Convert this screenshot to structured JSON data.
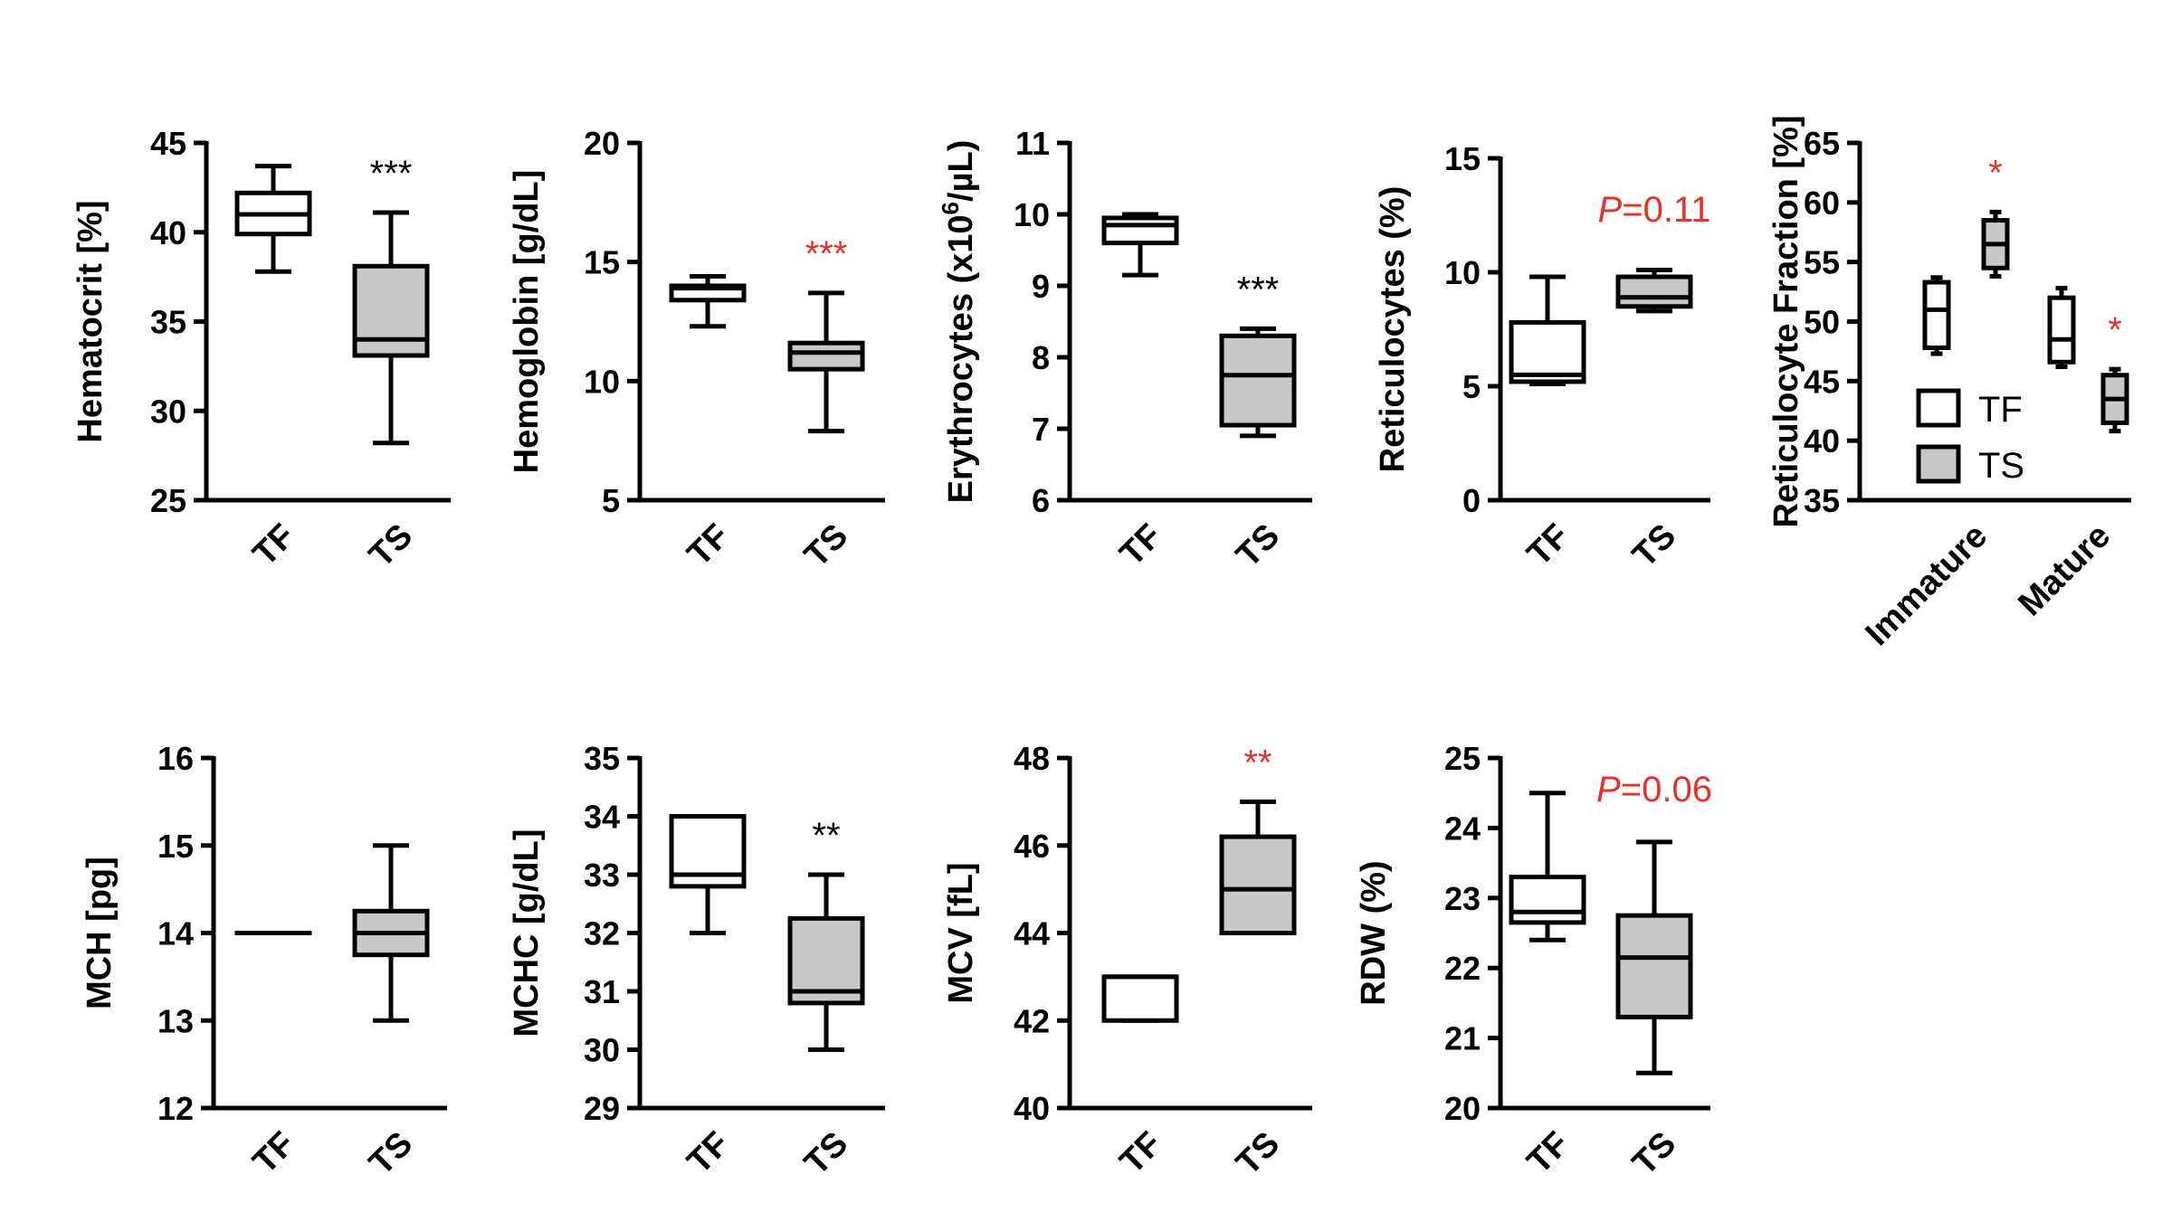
{
  "colors": {
    "tf_fill": "#ffffff",
    "ts_fill": "#c8c8c8",
    "line": "#000000",
    "significance_red": "#e8312a",
    "significance_black": "#000000"
  },
  "chart_data": [
    {
      "type": "box",
      "ylabel": "Hematocrit [%]",
      "ylim": [
        25,
        45
      ],
      "yticks": [
        25,
        30,
        35,
        40,
        45
      ],
      "categories": [
        "TF",
        "TS"
      ],
      "boxes": [
        {
          "group": "TF",
          "min": 37.8,
          "q1": 39.9,
          "median": 41.0,
          "q3": 42.2,
          "max": 43.7
        },
        {
          "group": "TS",
          "min": 28.2,
          "q1": 33.1,
          "median": 34.0,
          "q3": 38.1,
          "max": 41.1
        }
      ],
      "annotations": [
        {
          "text": "***",
          "group": "TS",
          "color": "black"
        }
      ]
    },
    {
      "type": "box",
      "ylabel": "Hemoglobin [g/dL]",
      "ylim": [
        5,
        20
      ],
      "yticks": [
        5,
        10,
        15,
        20
      ],
      "categories": [
        "TF",
        "TS"
      ],
      "boxes": [
        {
          "group": "TF",
          "min": 12.3,
          "q1": 13.4,
          "median": 13.9,
          "q3": 14.0,
          "max": 14.4
        },
        {
          "group": "TS",
          "min": 7.9,
          "q1": 10.5,
          "median": 11.2,
          "q3": 11.6,
          "max": 13.7
        }
      ],
      "annotations": [
        {
          "text": "***",
          "group": "TS",
          "color": "red"
        }
      ]
    },
    {
      "type": "box",
      "ylabel": "Erythrocytes (x10⁶/µL)",
      "ylim": [
        6,
        11
      ],
      "yticks": [
        6,
        7,
        8,
        9,
        10,
        11
      ],
      "categories": [
        "TF",
        "TS"
      ],
      "boxes": [
        {
          "group": "TF",
          "min": 9.15,
          "q1": 9.6,
          "median": 9.85,
          "q3": 9.95,
          "max": 10.0
        },
        {
          "group": "TS",
          "min": 6.9,
          "q1": 7.05,
          "median": 7.75,
          "q3": 8.3,
          "max": 8.4
        }
      ],
      "annotations": [
        {
          "text": "***",
          "group": "TS",
          "color": "black"
        }
      ]
    },
    {
      "type": "box",
      "ylabel": "Reticulocytes (%)",
      "ylim": [
        0,
        15
      ],
      "yticks": [
        0,
        5,
        10,
        15
      ],
      "categories": [
        "TF",
        "TS"
      ],
      "boxes": [
        {
          "group": "TF",
          "min": 5.1,
          "q1": 5.2,
          "median": 5.5,
          "q3": 7.8,
          "max": 9.8
        },
        {
          "group": "TS",
          "min": 8.3,
          "q1": 8.5,
          "median": 8.9,
          "q3": 9.8,
          "max": 10.1
        }
      ],
      "annotations": [
        {
          "text": "P=0.11",
          "group": "TS",
          "color": "red"
        }
      ]
    },
    {
      "type": "box",
      "ylabel": "Reticulocyte Fraction [%]",
      "ylim": [
        35,
        65
      ],
      "yticks": [
        35,
        40,
        45,
        50,
        55,
        60,
        65
      ],
      "categories": [
        "Immature",
        "Mature"
      ],
      "legend": {
        "labels": [
          "TF",
          "TS"
        ],
        "position": "lower-left"
      },
      "boxes": [
        {
          "category": "Immature",
          "group": "TF",
          "min": 47.3,
          "q1": 47.8,
          "median": 51.0,
          "q3": 53.3,
          "max": 53.7
        },
        {
          "category": "Immature",
          "group": "TS",
          "min": 53.8,
          "q1": 54.5,
          "median": 56.5,
          "q3": 58.5,
          "max": 59.2
        },
        {
          "category": "Mature",
          "group": "TF",
          "min": 46.2,
          "q1": 46.6,
          "median": 48.5,
          "q3": 52.0,
          "max": 52.8
        },
        {
          "category": "Mature",
          "group": "TS",
          "min": 40.8,
          "q1": 41.5,
          "median": 43.5,
          "q3": 45.5,
          "max": 46.0
        }
      ],
      "annotations": [
        {
          "text": "*",
          "category": "Immature",
          "group": "TS",
          "color": "red"
        },
        {
          "text": "*",
          "category": "Mature",
          "group": "TS",
          "color": "red"
        }
      ]
    },
    {
      "type": "box",
      "ylabel": "MCH [pg]",
      "ylim": [
        12,
        16
      ],
      "yticks": [
        12,
        13,
        14,
        15,
        16
      ],
      "categories": [
        "TF",
        "TS"
      ],
      "boxes": [
        {
          "group": "TF",
          "min": 14.0,
          "q1": 14.0,
          "median": 14.0,
          "q3": 14.0,
          "max": 14.0
        },
        {
          "group": "TS",
          "min": 13.0,
          "q1": 13.75,
          "median": 14.0,
          "q3": 14.25,
          "max": 15.0
        }
      ],
      "annotations": []
    },
    {
      "type": "box",
      "ylabel": "MCHC [g/dL]",
      "ylim": [
        29,
        35
      ],
      "yticks": [
        29,
        30,
        31,
        32,
        33,
        34,
        35
      ],
      "categories": [
        "TF",
        "TS"
      ],
      "boxes": [
        {
          "group": "TF",
          "min": 32.0,
          "q1": 32.8,
          "median": 33.0,
          "q3": 34.0,
          "max": 34.0
        },
        {
          "group": "TS",
          "min": 30.0,
          "q1": 30.8,
          "median": 31.0,
          "q3": 32.25,
          "max": 33.0
        }
      ],
      "annotations": [
        {
          "text": "**",
          "group": "TS",
          "color": "black"
        }
      ]
    },
    {
      "type": "box",
      "ylabel": "MCV [fL]",
      "ylim": [
        40,
        48
      ],
      "yticks": [
        40,
        42,
        44,
        46,
        48
      ],
      "categories": [
        "TF",
        "TS"
      ],
      "boxes": [
        {
          "group": "TF",
          "min": 42.0,
          "q1": 42.0,
          "median": 43.0,
          "q3": 43.0,
          "max": 43.0
        },
        {
          "group": "TS",
          "min": 44.0,
          "q1": 44.0,
          "median": 45.0,
          "q3": 46.2,
          "max": 47.0
        }
      ],
      "annotations": [
        {
          "text": "**",
          "group": "TS",
          "color": "red"
        }
      ]
    },
    {
      "type": "box",
      "ylabel": "RDW (%)",
      "ylim": [
        20,
        25
      ],
      "yticks": [
        20,
        21,
        22,
        23,
        24,
        25
      ],
      "categories": [
        "TF",
        "TS"
      ],
      "boxes": [
        {
          "group": "TF",
          "min": 22.4,
          "q1": 22.65,
          "median": 22.8,
          "q3": 23.3,
          "max": 24.5
        },
        {
          "group": "TS",
          "min": 20.5,
          "q1": 21.3,
          "median": 22.15,
          "q3": 22.75,
          "max": 23.8
        }
      ],
      "annotations": [
        {
          "text": "P=0.06",
          "group": "TS",
          "color": "red"
        }
      ]
    }
  ]
}
